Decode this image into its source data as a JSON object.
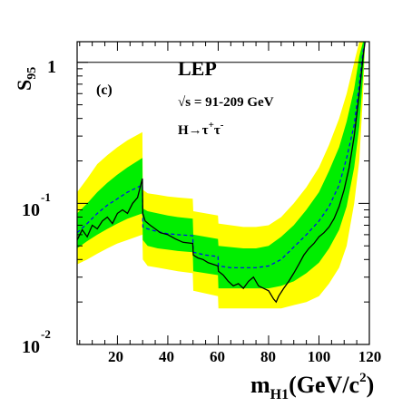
{
  "chart_data": {
    "type": "line",
    "title": "",
    "panel_label": "(c)",
    "experiment": "LEP",
    "energy_label": "√s = 91-209 GeV",
    "channel_parts": [
      "H→τ",
      "+",
      "τ",
      "-"
    ],
    "ylabel_main": "S",
    "ylabel_sub": "95",
    "xlabel_main": "m",
    "xlabel_sub": "H1",
    "xlabel_rest": "(GeV/c",
    "xlabel_sup": "2",
    "xlabel_close": ")",
    "xlim": [
      4,
      120
    ],
    "ylim": [
      0.01,
      1.4
    ],
    "y_scale": "log",
    "reference_line": 1,
    "xticks": [
      20,
      40,
      60,
      80,
      100,
      120
    ],
    "yticks": [
      {
        "value": 1,
        "base": "1",
        "exp": ""
      },
      {
        "value": 0.1,
        "base": "10",
        "exp": "-1"
      },
      {
        "value": 0.01,
        "base": "10",
        "exp": "-2"
      }
    ],
    "colors": {
      "band_2sigma": "#ffff00",
      "band_1sigma": "#00ee00",
      "observed": "#000000",
      "expected": "#0000ff"
    },
    "bands": [
      {
        "name": "2-sigma",
        "x": [
          4,
          8,
          12,
          16,
          20,
          24,
          29.9,
          30.1,
          32,
          36,
          40,
          44,
          49.9,
          50.1,
          55,
          59.9,
          60.1,
          65,
          70,
          75,
          80,
          85,
          90,
          95,
          100,
          104,
          108,
          111,
          114,
          116,
          117.5,
          118.3
        ],
        "low": [
          0.037,
          0.04,
          0.044,
          0.048,
          0.052,
          0.055,
          0.06,
          0.04,
          0.036,
          0.035,
          0.034,
          0.033,
          0.032,
          0.024,
          0.023,
          0.022,
          0.018,
          0.018,
          0.018,
          0.018,
          0.018,
          0.018,
          0.019,
          0.02,
          0.022,
          0.027,
          0.035,
          0.05,
          0.1,
          0.2,
          0.6,
          1.4
        ],
        "high": [
          0.12,
          0.15,
          0.19,
          0.22,
          0.25,
          0.28,
          0.32,
          0.125,
          0.118,
          0.115,
          0.112,
          0.11,
          0.108,
          0.088,
          0.085,
          0.082,
          0.072,
          0.07,
          0.068,
          0.068,
          0.07,
          0.08,
          0.1,
          0.13,
          0.18,
          0.26,
          0.4,
          0.6,
          1.0,
          1.4,
          1.4,
          1.4
        ]
      },
      {
        "name": "1-sigma",
        "x": [
          4,
          8,
          12,
          16,
          20,
          24,
          29.9,
          30.1,
          32,
          36,
          40,
          44,
          49.9,
          50.1,
          55,
          59.9,
          60.1,
          65,
          70,
          75,
          80,
          85,
          90,
          95,
          100,
          104,
          108,
          111,
          114,
          116,
          117.5,
          118.3
        ],
        "low": [
          0.048,
          0.054,
          0.06,
          0.066,
          0.072,
          0.078,
          0.085,
          0.055,
          0.05,
          0.048,
          0.047,
          0.046,
          0.045,
          0.033,
          0.032,
          0.031,
          0.025,
          0.025,
          0.025,
          0.025,
          0.025,
          0.026,
          0.028,
          0.032,
          0.038,
          0.048,
          0.065,
          0.095,
          0.18,
          0.35,
          0.8,
          1.4
        ],
        "high": [
          0.085,
          0.1,
          0.12,
          0.14,
          0.16,
          0.18,
          0.21,
          0.092,
          0.088,
          0.085,
          0.082,
          0.08,
          0.078,
          0.06,
          0.058,
          0.056,
          0.05,
          0.049,
          0.048,
          0.048,
          0.05,
          0.058,
          0.07,
          0.09,
          0.12,
          0.17,
          0.25,
          0.38,
          0.65,
          1.1,
          1.4,
          1.4
        ]
      }
    ],
    "series": [
      {
        "name": "",
        "style": "dashed",
        "x": [
          4,
          8,
          12,
          16,
          20,
          24,
          29.9,
          30.1,
          32,
          36,
          40,
          44,
          49.9,
          50.1,
          55,
          59.9,
          60.1,
          65,
          70,
          75,
          80,
          85,
          90,
          95,
          100,
          104,
          108,
          111,
          114,
          116,
          117.5,
          118.3
        ],
        "y": [
          0.062,
          0.072,
          0.085,
          0.097,
          0.108,
          0.12,
          0.135,
          0.068,
          0.066,
          0.063,
          0.061,
          0.06,
          0.059,
          0.045,
          0.043,
          0.042,
          0.036,
          0.035,
          0.035,
          0.035,
          0.036,
          0.04,
          0.049,
          0.06,
          0.075,
          0.095,
          0.135,
          0.21,
          0.36,
          0.7,
          1.2,
          1.4
        ]
      },
      {
        "name": "",
        "style": "solid",
        "x": [
          4,
          6,
          8,
          10,
          12,
          14,
          16,
          18,
          20,
          22,
          24,
          26,
          28,
          29.9,
          30.1,
          31,
          33,
          35,
          37,
          40,
          43,
          46,
          49.9,
          50.1,
          52,
          54,
          56,
          58,
          59.9,
          60.1,
          62,
          64,
          66,
          68,
          70,
          72,
          74,
          76,
          78,
          80,
          82,
          83,
          84,
          86,
          88,
          90,
          92,
          94,
          96,
          98,
          100,
          102,
          104,
          106,
          108,
          110,
          112,
          114,
          116,
          117.5,
          118.3
        ],
        "y": [
          0.055,
          0.065,
          0.058,
          0.07,
          0.066,
          0.075,
          0.08,
          0.072,
          0.085,
          0.09,
          0.085,
          0.1,
          0.11,
          0.15,
          0.085,
          0.075,
          0.07,
          0.066,
          0.062,
          0.06,
          0.056,
          0.053,
          0.052,
          0.043,
          0.041,
          0.04,
          0.038,
          0.037,
          0.036,
          0.033,
          0.031,
          0.028,
          0.026,
          0.027,
          0.025,
          0.028,
          0.03,
          0.026,
          0.025,
          0.024,
          0.021,
          0.02,
          0.022,
          0.025,
          0.028,
          0.032,
          0.037,
          0.043,
          0.048,
          0.052,
          0.058,
          0.062,
          0.068,
          0.078,
          0.095,
          0.125,
          0.18,
          0.3,
          0.6,
          1.1,
          1.4
        ]
      }
    ]
  }
}
